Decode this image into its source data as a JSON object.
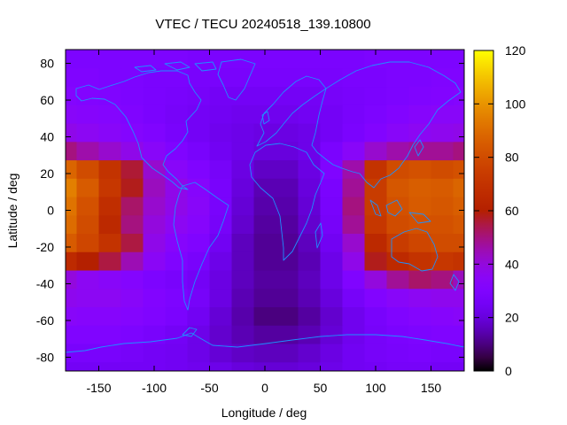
{
  "chart_data": {
    "type": "heatmap",
    "title": "VTEC / TECU 20240518_139.10800",
    "xlabel": "Longitude / deg",
    "ylabel": "Latitude / deg",
    "xlim": [
      -180,
      180
    ],
    "ylim": [
      -87.5,
      87.5
    ],
    "xticks": [
      -150,
      -100,
      -50,
      0,
      50,
      100,
      150
    ],
    "yticks": [
      -80,
      -60,
      -40,
      -20,
      0,
      20,
      40,
      60,
      80
    ],
    "colorbar": {
      "min": 0,
      "max": 120,
      "ticks": [
        0,
        20,
        40,
        60,
        80,
        100,
        120
      ],
      "palette": "black-purple-red-orange-yellow"
    },
    "grid": false,
    "legend": "none",
    "overlay": "coastlines",
    "overlay_color": "#1e90ff",
    "lat_centers": [
      -87.5,
      -77.5,
      -67.5,
      -57.5,
      -47.5,
      -37.5,
      -27.5,
      -17.5,
      -7.5,
      2.5,
      12.5,
      22.5,
      32.5,
      42.5,
      52.5,
      62.5,
      72.5,
      82.5
    ],
    "lon_centers": [
      -180,
      -160,
      -140,
      -120,
      -100,
      -80,
      -60,
      -40,
      -20,
      0,
      20,
      40,
      60,
      80,
      100,
      120,
      140,
      160,
      180
    ],
    "values": [
      [
        25,
        25,
        25,
        25,
        25,
        24,
        23,
        22,
        20,
        19,
        19,
        20,
        22,
        24,
        25,
        26,
        26,
        25,
        25
      ],
      [
        27,
        27,
        27,
        26,
        25,
        24,
        22,
        19,
        17,
        16,
        16,
        18,
        21,
        24,
        26,
        27,
        28,
        27,
        27
      ],
      [
        30,
        30,
        30,
        29,
        27,
        25,
        22,
        18,
        15,
        13,
        13,
        15,
        19,
        23,
        26,
        28,
        29,
        30,
        30
      ],
      [
        34,
        33,
        33,
        32,
        30,
        28,
        24,
        19,
        14,
        10,
        10,
        13,
        18,
        23,
        27,
        30,
        32,
        33,
        34
      ],
      [
        37,
        36,
        36,
        34,
        31,
        29,
        26,
        21,
        15,
        12,
        12,
        15,
        20,
        26,
        31,
        34,
        36,
        37,
        37
      ],
      [
        40,
        36,
        34,
        32,
        29,
        27,
        25,
        21,
        16,
        13,
        13,
        16,
        22,
        30,
        40,
        48,
        52,
        50,
        44
      ],
      [
        66,
        60,
        55,
        45,
        35,
        30,
        27,
        22,
        16,
        12,
        12,
        15,
        22,
        38,
        58,
        66,
        70,
        72,
        70
      ],
      [
        85,
        78,
        70,
        55,
        38,
        33,
        30,
        24,
        16,
        12,
        12,
        16,
        24,
        42,
        65,
        74,
        78,
        80,
        80
      ],
      [
        90,
        80,
        65,
        50,
        40,
        36,
        33,
        26,
        18,
        13,
        13,
        18,
        26,
        48,
        72,
        80,
        82,
        82,
        84
      ],
      [
        92,
        82,
        68,
        52,
        42,
        38,
        34,
        27,
        19,
        14,
        14,
        19,
        27,
        50,
        74,
        82,
        85,
        84,
        86
      ],
      [
        95,
        85,
        72,
        58,
        44,
        38,
        33,
        27,
        20,
        15,
        15,
        20,
        28,
        48,
        74,
        84,
        86,
        85,
        88
      ],
      [
        88,
        80,
        70,
        56,
        42,
        34,
        30,
        26,
        21,
        17,
        17,
        21,
        30,
        46,
        70,
        80,
        82,
        80,
        82
      ],
      [
        50,
        46,
        42,
        38,
        34,
        30,
        27,
        24,
        22,
        20,
        20,
        22,
        28,
        34,
        42,
        46,
        48,
        48,
        50
      ],
      [
        38,
        36,
        34,
        32,
        30,
        27,
        25,
        23,
        22,
        21,
        21,
        22,
        25,
        28,
        31,
        34,
        36,
        37,
        38
      ],
      [
        34,
        33,
        32,
        30,
        28,
        26,
        25,
        24,
        23,
        23,
        23,
        24,
        25,
        27,
        29,
        31,
        33,
        34,
        34
      ],
      [
        32,
        31,
        30,
        29,
        28,
        27,
        26,
        25,
        25,
        25,
        25,
        25,
        26,
        27,
        28,
        29,
        30,
        31,
        32
      ],
      [
        30,
        30,
        29,
        29,
        28,
        28,
        27,
        27,
        27,
        27,
        27,
        27,
        27,
        28,
        28,
        29,
        29,
        30,
        30
      ],
      [
        29,
        29,
        29,
        29,
        29,
        29,
        28,
        28,
        28,
        28,
        28,
        28,
        28,
        28,
        29,
        29,
        29,
        29,
        29
      ]
    ]
  }
}
